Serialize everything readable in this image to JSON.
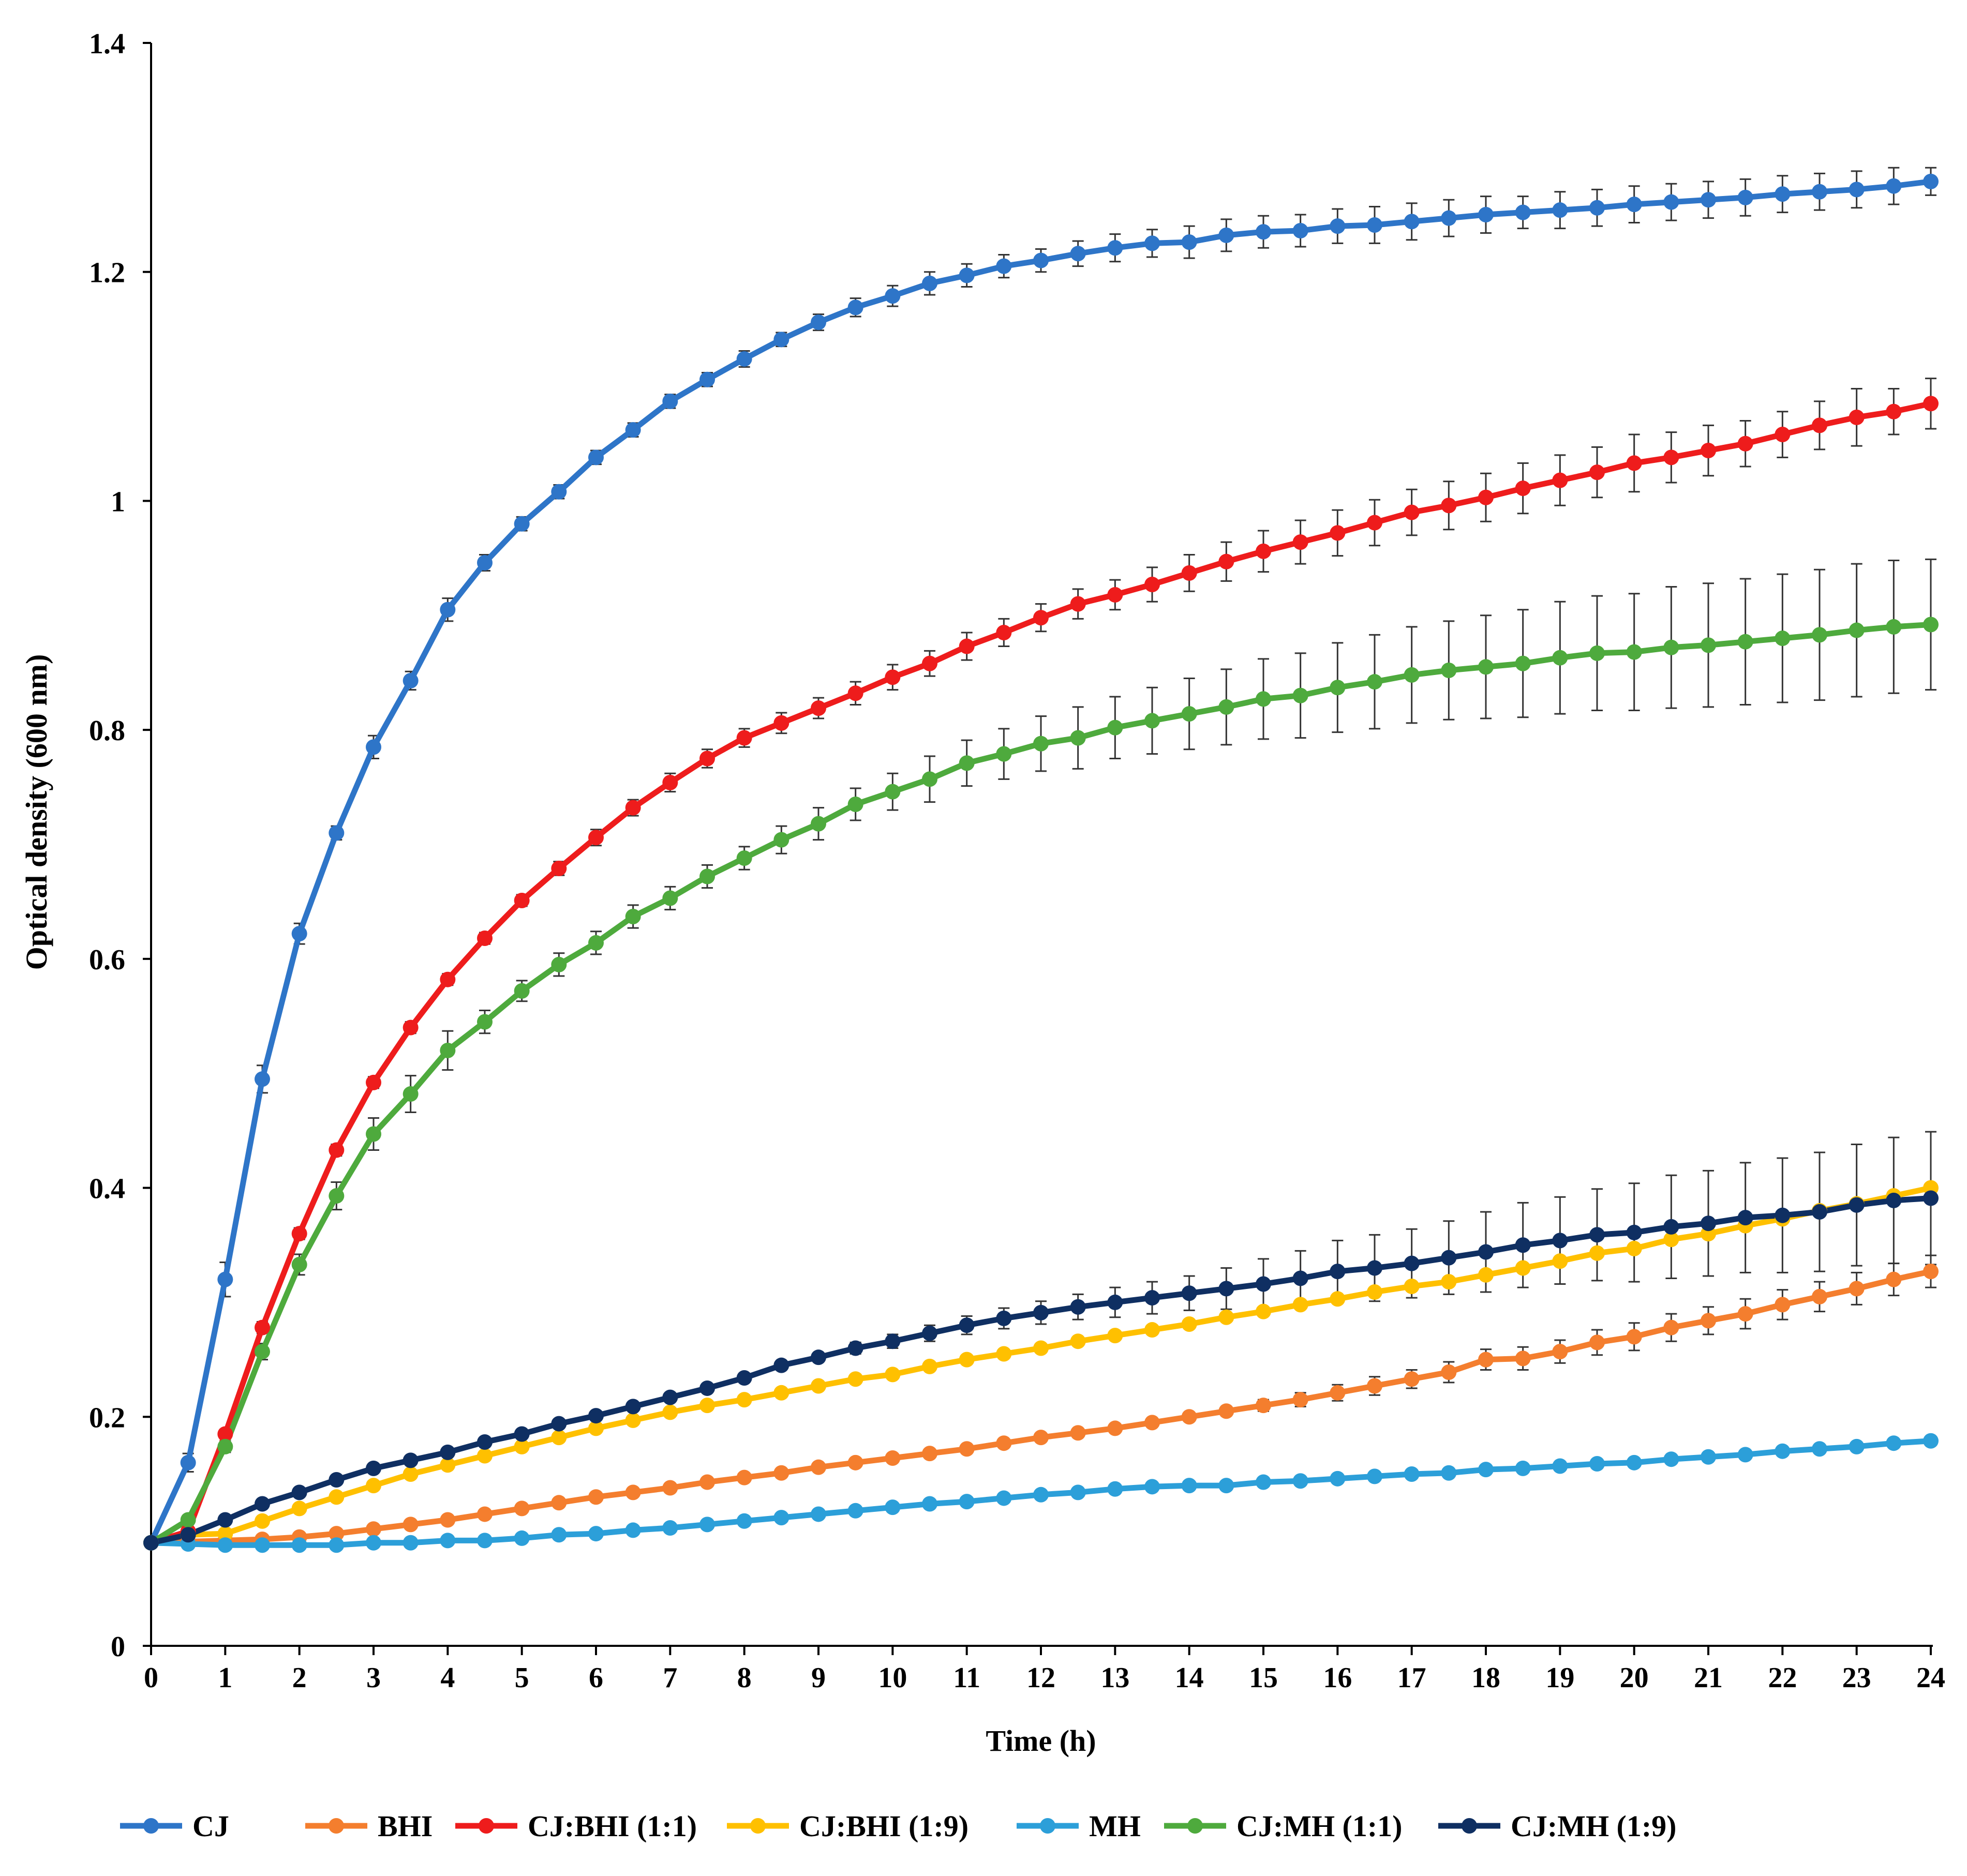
{
  "chart_data": {
    "type": "line",
    "title": "",
    "xlabel": "Time (h)",
    "ylabel": "Optical density (600 nm)",
    "xlim": [
      0,
      24
    ],
    "ylim": [
      0,
      1.4
    ],
    "x_ticks": [
      0,
      1,
      2,
      3,
      4,
      5,
      6,
      7,
      8,
      9,
      10,
      11,
      12,
      13,
      14,
      15,
      16,
      17,
      18,
      19,
      20,
      21,
      22,
      23,
      24
    ],
    "x_tick_labels": [
      "0",
      "1",
      "2",
      "3",
      "4",
      "5",
      "6",
      "7",
      "8",
      "9",
      "10",
      "11",
      "12",
      "13",
      "14",
      "15",
      "16",
      "17",
      "18",
      "19",
      "20",
      "21",
      "22",
      "23",
      "24"
    ],
    "y_ticks": [
      0,
      0.2,
      0.4,
      0.6,
      0.8,
      1,
      1.2,
      1.4
    ],
    "y_tick_labels": [
      "0",
      "0.2",
      "0.4",
      "0.6",
      "0.8",
      "1",
      "1.2",
      "1.4"
    ],
    "grid": false,
    "legend_position": "bottom",
    "x": [
      0,
      0.5,
      1,
      1.5,
      2,
      2.5,
      3,
      3.5,
      4,
      4.5,
      5,
      5.5,
      6,
      6.5,
      7,
      7.5,
      8,
      8.5,
      9,
      9.5,
      10,
      10.5,
      11,
      11.5,
      12,
      12.5,
      13,
      13.5,
      14,
      14.5,
      15,
      15.5,
      16,
      16.5,
      17,
      17.5,
      18,
      18.5,
      19,
      19.5,
      20,
      20.5,
      21,
      21.5,
      22,
      22.5,
      23,
      23.5,
      24
    ],
    "series": [
      {
        "name": "CJ",
        "color": "#2E75C8",
        "values": [
          0.09,
          0.16,
          0.32,
          0.495,
          0.622,
          0.71,
          0.785,
          0.843,
          0.905,
          0.946,
          0.98,
          1.008,
          1.038,
          1.062,
          1.087,
          1.106,
          1.124,
          1.141,
          1.156,
          1.169,
          1.179,
          1.19,
          1.197,
          1.205,
          1.21,
          1.216,
          1.221,
          1.225,
          1.226,
          1.232,
          1.235,
          1.236,
          1.24,
          1.241,
          1.244,
          1.247,
          1.25,
          1.252,
          1.254,
          1.256,
          1.259,
          1.261,
          1.263,
          1.265,
          1.268,
          1.27,
          1.272,
          1.275,
          1.279
        ],
        "errors": [
          0.002,
          0.008,
          0.015,
          0.012,
          0.009,
          0.006,
          0.01,
          0.008,
          0.01,
          0.007,
          0.006,
          0.006,
          0.006,
          0.006,
          0.006,
          0.006,
          0.007,
          0.006,
          0.007,
          0.008,
          0.009,
          0.01,
          0.01,
          0.01,
          0.01,
          0.011,
          0.012,
          0.012,
          0.014,
          0.014,
          0.014,
          0.014,
          0.015,
          0.016,
          0.016,
          0.016,
          0.016,
          0.014,
          0.016,
          0.016,
          0.016,
          0.016,
          0.016,
          0.016,
          0.016,
          0.016,
          0.016,
          0.016,
          0.012
        ]
      },
      {
        "name": "BHI",
        "color": "#F47E2E",
        "values": [
          0.09,
          0.091,
          0.092,
          0.093,
          0.095,
          0.098,
          0.102,
          0.106,
          0.11,
          0.115,
          0.12,
          0.125,
          0.13,
          0.134,
          0.138,
          0.143,
          0.147,
          0.151,
          0.156,
          0.16,
          0.164,
          0.168,
          0.172,
          0.177,
          0.182,
          0.186,
          0.19,
          0.195,
          0.2,
          0.205,
          0.21,
          0.215,
          0.221,
          0.227,
          0.233,
          0.239,
          0.25,
          0.251,
          0.257,
          0.265,
          0.27,
          0.278,
          0.284,
          0.29,
          0.298,
          0.305,
          0.312,
          0.32,
          0.327
        ],
        "errors": [
          0.002,
          0.002,
          0.002,
          0.002,
          0.002,
          0.002,
          0.002,
          0.002,
          0.002,
          0.002,
          0.002,
          0.002,
          0.002,
          0.002,
          0.002,
          0.002,
          0.002,
          0.002,
          0.002,
          0.002,
          0.002,
          0.002,
          0.002,
          0.002,
          0.002,
          0.002,
          0.003,
          0.003,
          0.003,
          0.004,
          0.005,
          0.006,
          0.007,
          0.008,
          0.008,
          0.009,
          0.009,
          0.01,
          0.01,
          0.011,
          0.012,
          0.012,
          0.012,
          0.013,
          0.013,
          0.013,
          0.014,
          0.014,
          0.014
        ]
      },
      {
        "name": "CJ:BHI (1:1)",
        "color": "#EE1C1C",
        "values": [
          0.09,
          0.1,
          0.185,
          0.278,
          0.36,
          0.433,
          0.492,
          0.54,
          0.582,
          0.618,
          0.651,
          0.679,
          0.706,
          0.732,
          0.754,
          0.775,
          0.793,
          0.806,
          0.819,
          0.832,
          0.846,
          0.858,
          0.873,
          0.885,
          0.898,
          0.91,
          0.918,
          0.927,
          0.937,
          0.947,
          0.956,
          0.964,
          0.972,
          0.981,
          0.99,
          0.996,
          1.003,
          1.011,
          1.018,
          1.025,
          1.033,
          1.038,
          1.044,
          1.05,
          1.058,
          1.066,
          1.073,
          1.078,
          1.085
        ],
        "errors": [
          0.002,
          0.003,
          0.004,
          0.005,
          0.005,
          0.005,
          0.005,
          0.005,
          0.005,
          0.005,
          0.005,
          0.006,
          0.007,
          0.007,
          0.008,
          0.008,
          0.008,
          0.009,
          0.009,
          0.01,
          0.011,
          0.011,
          0.012,
          0.012,
          0.012,
          0.013,
          0.013,
          0.015,
          0.016,
          0.017,
          0.018,
          0.019,
          0.02,
          0.02,
          0.02,
          0.021,
          0.021,
          0.022,
          0.022,
          0.022,
          0.025,
          0.022,
          0.022,
          0.02,
          0.02,
          0.021,
          0.025,
          0.02,
          0.022
        ]
      },
      {
        "name": "CJ:BHI (1:9)",
        "color": "#FFC000",
        "values": [
          0.09,
          0.097,
          0.098,
          0.109,
          0.12,
          0.13,
          0.14,
          0.15,
          0.158,
          0.166,
          0.174,
          0.182,
          0.19,
          0.197,
          0.204,
          0.21,
          0.215,
          0.221,
          0.227,
          0.233,
          0.237,
          0.244,
          0.25,
          0.255,
          0.26,
          0.266,
          0.271,
          0.276,
          0.281,
          0.287,
          0.292,
          0.298,
          0.303,
          0.309,
          0.314,
          0.318,
          0.324,
          0.33,
          0.336,
          0.343,
          0.347,
          0.355,
          0.36,
          0.367,
          0.373,
          0.38,
          0.386,
          0.393,
          0.4
        ],
        "errors": [
          0.002,
          0.002,
          0.002,
          0.002,
          0.002,
          0.002,
          0.002,
          0.002,
          0.002,
          0.002,
          0.002,
          0.002,
          0.002,
          0.002,
          0.002,
          0.002,
          0.002,
          0.002,
          0.002,
          0.002,
          0.002,
          0.002,
          0.002,
          0.002,
          0.002,
          0.002,
          0.002,
          0.002,
          0.002,
          0.002,
          0.002,
          0.002,
          0.002,
          0.002,
          0.002,
          0.002,
          0.002,
          0.003,
          0.003,
          0.003,
          0.003,
          0.003,
          0.003,
          0.003,
          0.003,
          0.003,
          0.003,
          0.003,
          0.003
        ]
      },
      {
        "name": "MH",
        "color": "#2C9FD9",
        "values": [
          0.09,
          0.089,
          0.088,
          0.088,
          0.088,
          0.088,
          0.09,
          0.09,
          0.092,
          0.092,
          0.094,
          0.097,
          0.098,
          0.101,
          0.103,
          0.106,
          0.109,
          0.112,
          0.115,
          0.118,
          0.121,
          0.124,
          0.126,
          0.129,
          0.132,
          0.134,
          0.137,
          0.139,
          0.14,
          0.14,
          0.143,
          0.144,
          0.146,
          0.148,
          0.15,
          0.151,
          0.154,
          0.155,
          0.157,
          0.159,
          0.16,
          0.163,
          0.165,
          0.167,
          0.17,
          0.172,
          0.174,
          0.177,
          0.179
        ],
        "errors": [
          0.002,
          0.002,
          0.002,
          0.002,
          0.002,
          0.002,
          0.002,
          0.002,
          0.002,
          0.002,
          0.002,
          0.002,
          0.002,
          0.002,
          0.002,
          0.002,
          0.002,
          0.002,
          0.002,
          0.002,
          0.002,
          0.002,
          0.002,
          0.002,
          0.002,
          0.002,
          0.002,
          0.002,
          0.002,
          0.002,
          0.002,
          0.002,
          0.002,
          0.002,
          0.002,
          0.002,
          0.002,
          0.002,
          0.002,
          0.002,
          0.002,
          0.002,
          0.002,
          0.002,
          0.002,
          0.002,
          0.002,
          0.002,
          0.002
        ]
      },
      {
        "name": "CJ:MH (1:1)",
        "color": "#4EAA3D",
        "values": [
          0.09,
          0.11,
          0.174,
          0.257,
          0.333,
          0.393,
          0.447,
          0.482,
          0.52,
          0.545,
          0.572,
          0.595,
          0.614,
          0.637,
          0.653,
          0.672,
          0.688,
          0.704,
          0.718,
          0.735,
          0.746,
          0.757,
          0.771,
          0.779,
          0.788,
          0.793,
          0.802,
          0.808,
          0.814,
          0.82,
          0.827,
          0.83,
          0.837,
          0.842,
          0.848,
          0.852,
          0.855,
          0.858,
          0.863,
          0.867,
          0.868,
          0.872,
          0.874,
          0.877,
          0.88,
          0.883,
          0.887,
          0.89,
          0.892
        ],
        "errors": [
          0.002,
          0.004,
          0.005,
          0.007,
          0.009,
          0.012,
          0.014,
          0.016,
          0.017,
          0.01,
          0.009,
          0.01,
          0.01,
          0.01,
          0.01,
          0.01,
          0.01,
          0.012,
          0.014,
          0.014,
          0.016,
          0.02,
          0.02,
          0.022,
          0.024,
          0.027,
          0.027,
          0.029,
          0.031,
          0.033,
          0.035,
          0.037,
          0.039,
          0.041,
          0.042,
          0.043,
          0.045,
          0.047,
          0.049,
          0.05,
          0.051,
          0.053,
          0.054,
          0.055,
          0.056,
          0.057,
          0.058,
          0.058,
          0.057
        ]
      },
      {
        "name": "CJ:MH (1:9)",
        "color": "#0F2F62",
        "values": [
          0.09,
          0.097,
          0.11,
          0.124,
          0.134,
          0.145,
          0.155,
          0.162,
          0.169,
          0.178,
          0.185,
          0.194,
          0.201,
          0.209,
          0.217,
          0.225,
          0.234,
          0.245,
          0.252,
          0.26,
          0.266,
          0.273,
          0.28,
          0.286,
          0.291,
          0.296,
          0.3,
          0.304,
          0.308,
          0.312,
          0.316,
          0.321,
          0.327,
          0.33,
          0.334,
          0.339,
          0.344,
          0.35,
          0.354,
          0.359,
          0.361,
          0.366,
          0.369,
          0.374,
          0.376,
          0.379,
          0.385,
          0.389,
          0.391
        ],
        "errors": [
          0.002,
          0.002,
          0.002,
          0.002,
          0.002,
          0.002,
          0.002,
          0.002,
          0.002,
          0.002,
          0.002,
          0.002,
          0.002,
          0.002,
          0.002,
          0.002,
          0.002,
          0.002,
          0.003,
          0.005,
          0.006,
          0.007,
          0.008,
          0.009,
          0.01,
          0.011,
          0.013,
          0.014,
          0.015,
          0.018,
          0.022,
          0.024,
          0.027,
          0.029,
          0.03,
          0.032,
          0.035,
          0.037,
          0.038,
          0.04,
          0.043,
          0.045,
          0.046,
          0.048,
          0.05,
          0.052,
          0.053,
          0.055,
          0.058
        ]
      }
    ]
  }
}
